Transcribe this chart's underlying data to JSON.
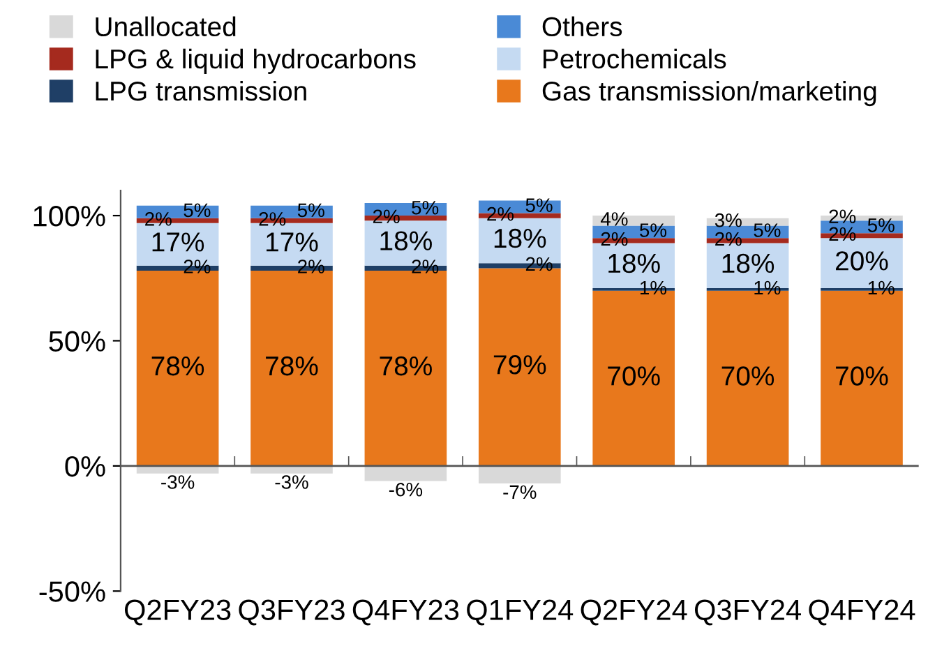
{
  "chart_data": {
    "type": "bar",
    "stacked": true,
    "legend": "top",
    "categories": [
      "Q2FY23",
      "Q3FY23",
      "Q4FY23",
      "Q1FY24",
      "Q2FY24",
      "Q3FY24",
      "Q4FY24"
    ],
    "series": [
      {
        "name": "Gas transmission/marketing",
        "color": "#e8781c",
        "values": [
          78,
          78,
          78,
          79,
          70,
          70,
          70
        ],
        "value_labels": [
          "78%",
          "78%",
          "78%",
          "79%",
          "70%",
          "70%",
          "70%"
        ]
      },
      {
        "name": "LPG transmission",
        "color": "#1f3f66",
        "values": [
          2,
          2,
          2,
          2,
          1,
          1,
          1
        ],
        "value_labels": [
          "2%",
          "2%",
          "2%",
          "2%",
          "1%",
          "1%",
          "1%"
        ]
      },
      {
        "name": "Petrochemicals",
        "color": "#c5daf2",
        "values": [
          17,
          17,
          18,
          18,
          18,
          18,
          20
        ],
        "value_labels": [
          "17%",
          "17%",
          "18%",
          "18%",
          "18%",
          "18%",
          "20%"
        ]
      },
      {
        "name": "LPG & liquid hydrocarbons",
        "color": "#a52a1e",
        "values": [
          2,
          2,
          2,
          2,
          2,
          2,
          2
        ],
        "value_labels": [
          "2%",
          "2%",
          "2%",
          "2%",
          "2%",
          "2%",
          "2%"
        ]
      },
      {
        "name": "Others",
        "color": "#4a8ad6",
        "values": [
          5,
          5,
          5,
          5,
          5,
          5,
          5
        ],
        "value_labels": [
          "5%",
          "5%",
          "5%",
          "5%",
          "5%",
          "5%",
          "5%"
        ]
      },
      {
        "name": "Unallocated",
        "color": "#d9d9d9",
        "values": [
          -3,
          -3,
          -6,
          -7,
          4,
          3,
          2
        ],
        "value_labels": [
          "-3%",
          "-3%",
          "-6%",
          "-7%",
          "4%",
          "3%",
          "2%"
        ]
      }
    ],
    "ylim": [
      -50,
      110
    ],
    "yticks": [
      {
        "value": -50,
        "label": "-50%"
      },
      {
        "value": 0,
        "label": "0%"
      },
      {
        "value": 50,
        "label": "50%"
      },
      {
        "value": 100,
        "label": "100%"
      }
    ],
    "ref_lines": [
      {
        "axis": "y",
        "value": 0,
        "color": "#555555"
      }
    ],
    "grid": false
  }
}
